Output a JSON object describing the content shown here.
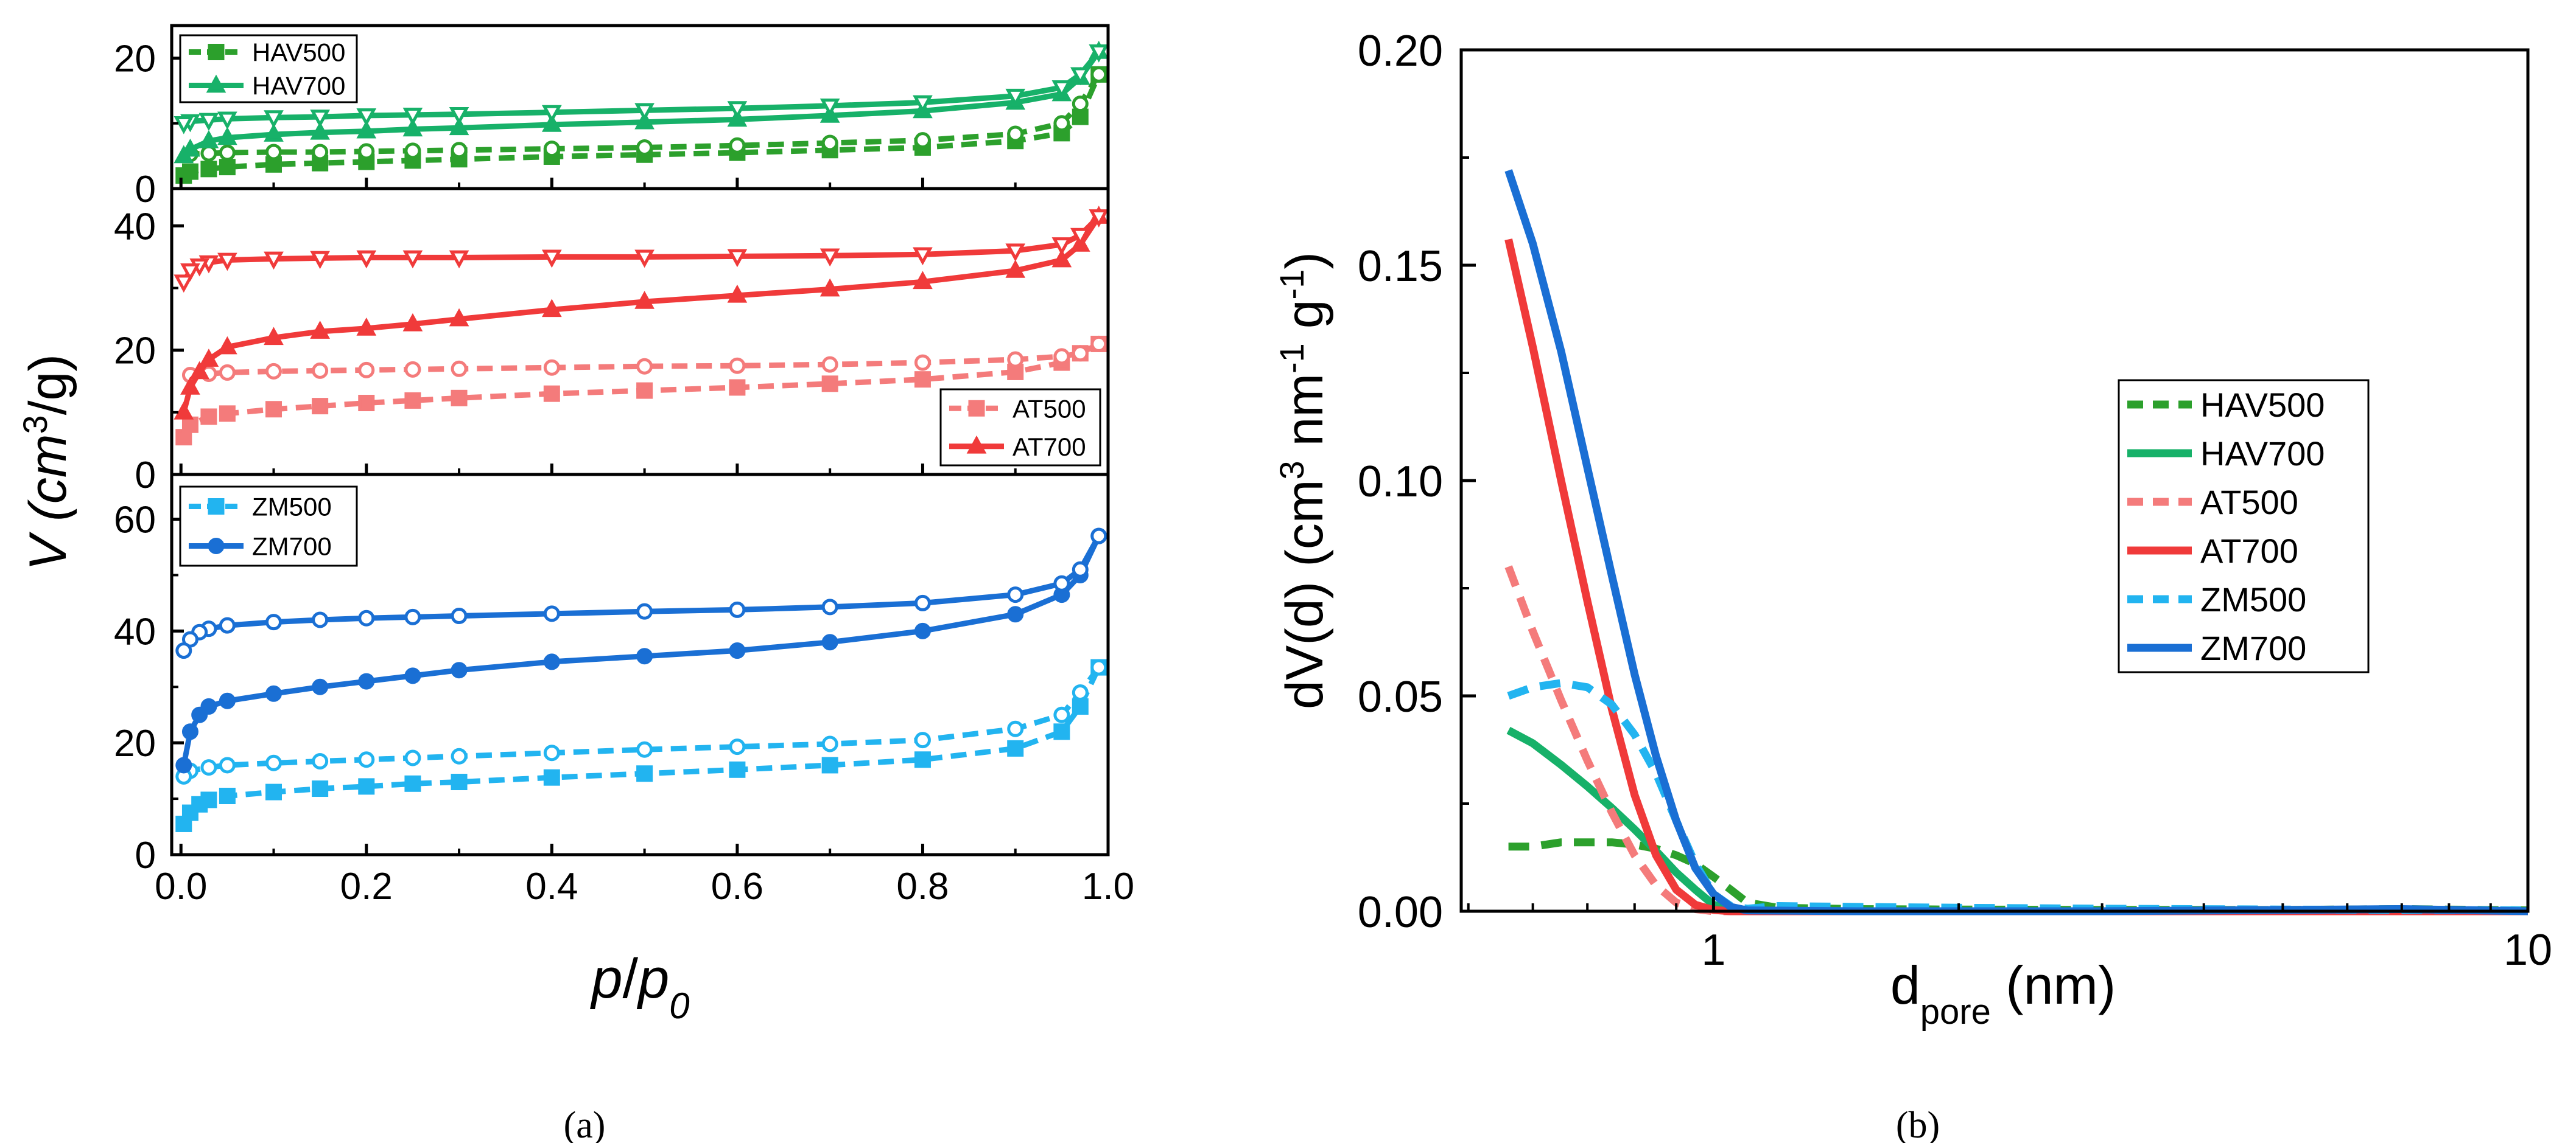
{
  "colors": {
    "HAV500": "#2ca02c",
    "HAV700": "#17b169",
    "AT500": "#f47b7b",
    "AT700": "#f03a3a",
    "ZM500": "#22b4f0",
    "ZM700": "#1a6fd4"
  },
  "panel_a": {
    "caption": "(a)",
    "xlabel_p": "p",
    "xlabel_slash": "/",
    "xlabel_p0": "p",
    "xlabel_sub": "0",
    "ylabel_pre": "V (cm",
    "ylabel_sup": "3",
    "ylabel_post": "/g)",
    "x_ticks": [
      "0.0",
      "0.2",
      "0.4",
      "0.6",
      "0.8",
      "1.0"
    ],
    "sub_ticks": [
      [
        "0",
        "20"
      ],
      [
        "0",
        "20",
        "40"
      ],
      [
        "0",
        "20",
        "40",
        "60"
      ]
    ],
    "legend_entries": [
      [
        "HAV500",
        "HAV700"
      ],
      [
        "AT500",
        "AT700"
      ],
      [
        "ZM500",
        "ZM700"
      ]
    ]
  },
  "panel_b": {
    "caption": "(b)",
    "ylabel_pre": "dV(d) (cm",
    "ylabel_sup1": "3",
    "ylabel_mid": " nm",
    "ylabel_sup2": "-1",
    "ylabel_mid2": " g",
    "ylabel_sup3": "-1",
    "ylabel_post": ")",
    "xlabel_main": "d",
    "xlabel_sub": "pore",
    "xlabel_post": " (nm)",
    "y_ticks": [
      "0.00",
      "0.05",
      "0.10",
      "0.15",
      "0.20"
    ],
    "x_ticks": [
      "1",
      "10"
    ],
    "legend": [
      "HAV500",
      "HAV700",
      "AT500",
      "AT700",
      "ZM500",
      "ZM700"
    ]
  },
  "chart_data": [
    {
      "type": "line",
      "title": "",
      "xlabel": "p/p0",
      "ylabel": "V (cm3/g)",
      "xlim": [
        -0.01,
        1.0
      ],
      "subplots": [
        {
          "ylim": [
            0,
            25
          ],
          "y_ticks": [
            0,
            20
          ],
          "series": [
            {
              "name": "HAV500",
              "branch": "adsorption",
              "style": "dashed",
              "marker": "square",
              "filled": true,
              "x": [
                0.003,
                0.01,
                0.03,
                0.05,
                0.1,
                0.15,
                0.2,
                0.25,
                0.3,
                0.4,
                0.5,
                0.6,
                0.7,
                0.8,
                0.9,
                0.95,
                0.97,
                0.99
              ],
              "y": [
                2.0,
                2.6,
                3.0,
                3.3,
                3.7,
                3.9,
                4.1,
                4.3,
                4.5,
                4.9,
                5.2,
                5.5,
                5.9,
                6.3,
                7.3,
                8.5,
                11.0,
                17.5
              ]
            },
            {
              "name": "HAV500",
              "branch": "desorption",
              "style": "dashed",
              "marker": "circle",
              "filled": false,
              "x": [
                0.99,
                0.97,
                0.95,
                0.9,
                0.8,
                0.7,
                0.6,
                0.5,
                0.4,
                0.3,
                0.25,
                0.2,
                0.15,
                0.1,
                0.05,
                0.03,
                0.01
              ],
              "y": [
                17.5,
                13.0,
                10.0,
                8.4,
                7.4,
                7.0,
                6.6,
                6.3,
                6.1,
                5.9,
                5.8,
                5.7,
                5.6,
                5.6,
                5.5,
                5.4,
                5.3
              ]
            },
            {
              "name": "HAV700",
              "branch": "adsorption",
              "style": "solid",
              "marker": "triangle",
              "filled": true,
              "x": [
                0.003,
                0.01,
                0.03,
                0.05,
                0.1,
                0.15,
                0.2,
                0.25,
                0.3,
                0.4,
                0.5,
                0.6,
                0.7,
                0.8,
                0.9,
                0.95,
                0.97,
                0.99
              ],
              "y": [
                5.0,
                6.0,
                7.3,
                7.8,
                8.3,
                8.6,
                8.8,
                9.1,
                9.3,
                9.8,
                10.2,
                10.6,
                11.2,
                11.9,
                13.2,
                14.5,
                17.0,
                21.0
              ]
            },
            {
              "name": "HAV700",
              "branch": "desorption",
              "style": "solid",
              "marker": "triangle-down",
              "filled": false,
              "x": [
                0.99,
                0.97,
                0.95,
                0.9,
                0.8,
                0.7,
                0.6,
                0.5,
                0.4,
                0.3,
                0.25,
                0.2,
                0.15,
                0.1,
                0.05,
                0.03,
                0.01,
                0.003
              ],
              "y": [
                21.0,
                17.5,
                15.5,
                14.2,
                13.2,
                12.7,
                12.3,
                12.0,
                11.7,
                11.4,
                11.3,
                11.2,
                11.0,
                10.9,
                10.7,
                10.5,
                10.3,
                10.0
              ]
            }
          ]
        },
        {
          "ylim": [
            0,
            46
          ],
          "y_ticks": [
            0,
            20,
            40
          ],
          "series": [
            {
              "name": "AT500",
              "branch": "adsorption",
              "style": "dashed",
              "marker": "square",
              "filled": true,
              "x": [
                0.003,
                0.01,
                0.03,
                0.05,
                0.1,
                0.15,
                0.2,
                0.25,
                0.3,
                0.4,
                0.5,
                0.6,
                0.7,
                0.8,
                0.9,
                0.95,
                0.97,
                0.99
              ],
              "y": [
                6.0,
                8.0,
                9.3,
                9.8,
                10.5,
                11.0,
                11.5,
                11.9,
                12.3,
                13.0,
                13.5,
                14.0,
                14.6,
                15.3,
                16.5,
                18.0,
                19.5,
                21.0
              ]
            },
            {
              "name": "AT500",
              "branch": "desorption",
              "style": "dashed",
              "marker": "circle",
              "filled": false,
              "x": [
                0.99,
                0.97,
                0.95,
                0.9,
                0.8,
                0.7,
                0.6,
                0.5,
                0.4,
                0.3,
                0.25,
                0.2,
                0.15,
                0.1,
                0.05,
                0.03,
                0.01
              ],
              "y": [
                21.0,
                19.5,
                19.0,
                18.5,
                18.0,
                17.7,
                17.5,
                17.4,
                17.2,
                17.0,
                16.9,
                16.8,
                16.7,
                16.6,
                16.4,
                16.2,
                16.0
              ]
            },
            {
              "name": "AT700",
              "branch": "adsorption",
              "style": "solid",
              "marker": "triangle",
              "filled": true,
              "x": [
                0.003,
                0.01,
                0.02,
                0.03,
                0.05,
                0.1,
                0.15,
                0.2,
                0.25,
                0.3,
                0.4,
                0.5,
                0.6,
                0.7,
                0.8,
                0.9,
                0.95,
                0.97,
                0.99
              ],
              "y": [
                10.0,
                14.0,
                16.5,
                18.5,
                20.5,
                22.0,
                23.0,
                23.5,
                24.2,
                25.0,
                26.5,
                27.8,
                28.8,
                29.8,
                31.0,
                32.8,
                34.5,
                37.0,
                41.5
              ]
            },
            {
              "name": "AT700",
              "branch": "desorption",
              "style": "solid",
              "marker": "triangle-down",
              "filled": false,
              "x": [
                0.99,
                0.97,
                0.95,
                0.9,
                0.8,
                0.7,
                0.6,
                0.5,
                0.4,
                0.3,
                0.25,
                0.2,
                0.15,
                0.1,
                0.05,
                0.03,
                0.02,
                0.01,
                0.003
              ],
              "y": [
                41.5,
                38.5,
                37.0,
                36.0,
                35.4,
                35.2,
                35.1,
                35.0,
                35.0,
                34.9,
                34.9,
                34.9,
                34.8,
                34.7,
                34.5,
                34.1,
                33.6,
                32.8,
                31.0
              ]
            }
          ]
        },
        {
          "ylim": [
            0,
            68
          ],
          "y_ticks": [
            0,
            20,
            40,
            60
          ],
          "series": [
            {
              "name": "ZM500",
              "branch": "adsorption",
              "style": "dashed",
              "marker": "square",
              "filled": true,
              "x": [
                0.003,
                0.01,
                0.02,
                0.03,
                0.05,
                0.1,
                0.15,
                0.2,
                0.25,
                0.3,
                0.4,
                0.5,
                0.6,
                0.7,
                0.8,
                0.9,
                0.95,
                0.97,
                0.99
              ],
              "y": [
                5.5,
                7.5,
                9.0,
                9.8,
                10.5,
                11.2,
                11.8,
                12.2,
                12.7,
                13.0,
                13.8,
                14.5,
                15.2,
                16.0,
                17.0,
                19.0,
                22.0,
                26.5,
                33.5
              ]
            },
            {
              "name": "ZM500",
              "branch": "desorption",
              "style": "dashed",
              "marker": "circle",
              "filled": false,
              "x": [
                0.99,
                0.97,
                0.95,
                0.9,
                0.8,
                0.7,
                0.6,
                0.5,
                0.4,
                0.3,
                0.25,
                0.2,
                0.15,
                0.1,
                0.05,
                0.03,
                0.01,
                0.003
              ],
              "y": [
                33.5,
                29.0,
                25.0,
                22.5,
                20.5,
                19.8,
                19.3,
                18.8,
                18.2,
                17.6,
                17.3,
                17.0,
                16.7,
                16.4,
                16.0,
                15.6,
                15.0,
                14.0
              ]
            },
            {
              "name": "ZM700",
              "branch": "adsorption",
              "style": "solid",
              "marker": "circle",
              "filled": true,
              "x": [
                0.003,
                0.01,
                0.02,
                0.03,
                0.05,
                0.1,
                0.15,
                0.2,
                0.25,
                0.3,
                0.4,
                0.5,
                0.6,
                0.7,
                0.8,
                0.9,
                0.95,
                0.97,
                0.99
              ],
              "y": [
                16.0,
                22.0,
                25.0,
                26.5,
                27.5,
                28.8,
                30.0,
                31.0,
                32.0,
                33.0,
                34.5,
                35.5,
                36.5,
                38.0,
                40.0,
                43.0,
                46.5,
                50.0,
                57.0
              ]
            },
            {
              "name": "ZM700",
              "branch": "desorption",
              "style": "solid",
              "marker": "circle",
              "filled": false,
              "x": [
                0.99,
                0.97,
                0.95,
                0.9,
                0.8,
                0.7,
                0.6,
                0.5,
                0.4,
                0.3,
                0.25,
                0.2,
                0.15,
                0.1,
                0.05,
                0.03,
                0.02,
                0.01,
                0.003
              ],
              "y": [
                57.0,
                51.0,
                48.5,
                46.5,
                45.0,
                44.3,
                43.8,
                43.5,
                43.1,
                42.7,
                42.5,
                42.3,
                42.0,
                41.6,
                41.0,
                40.4,
                39.8,
                38.5,
                36.5
              ]
            }
          ]
        }
      ]
    },
    {
      "type": "line",
      "title": "",
      "xlabel": "dpore (nm)",
      "ylabel": "dV(d) (cm3 nm-1 g-1)",
      "xscale": "log",
      "xlim": [
        0.49,
        10
      ],
      "ylim": [
        0,
        0.2
      ],
      "legend_position": "center-right",
      "series": [
        {
          "name": "HAV500",
          "style": "dashed",
          "x": [
            0.56,
            0.6,
            0.65,
            0.7,
            0.75,
            0.8,
            0.85,
            0.9,
            0.95,
            1.0,
            1.05,
            1.1,
            1.2,
            1.5,
            2,
            3,
            5,
            7,
            10
          ],
          "y": [
            0.015,
            0.015,
            0.016,
            0.016,
            0.016,
            0.0155,
            0.0145,
            0.013,
            0.011,
            0.008,
            0.005,
            0.002,
            0.0008,
            0.0005,
            0.0004,
            0.0003,
            0.0003,
            0.0005,
            0.0002
          ]
        },
        {
          "name": "HAV700",
          "style": "solid",
          "x": [
            0.56,
            0.6,
            0.65,
            0.7,
            0.75,
            0.8,
            0.85,
            0.9,
            0.95,
            1.0,
            1.05,
            1.1,
            1.2,
            1.5,
            3,
            10
          ],
          "y": [
            0.042,
            0.039,
            0.034,
            0.029,
            0.024,
            0.019,
            0.014,
            0.009,
            0.005,
            0.0015,
            0.0003,
            0.0001,
            0,
            0,
            0,
            0
          ]
        },
        {
          "name": "AT500",
          "style": "dashed",
          "x": [
            0.56,
            0.6,
            0.65,
            0.7,
            0.75,
            0.8,
            0.85,
            0.9,
            0.95,
            1.0,
            1.5,
            3,
            10
          ],
          "y": [
            0.08,
            0.065,
            0.049,
            0.035,
            0.023,
            0.013,
            0.006,
            0.002,
            0.0005,
            0,
            0,
            0,
            0
          ]
        },
        {
          "name": "AT700",
          "style": "solid",
          "x": [
            0.56,
            0.6,
            0.65,
            0.7,
            0.75,
            0.8,
            0.85,
            0.9,
            0.95,
            1.0,
            1.05,
            1.5,
            3,
            10
          ],
          "y": [
            0.156,
            0.131,
            0.1,
            0.072,
            0.047,
            0.027,
            0.013,
            0.005,
            0.0015,
            0.0003,
            0,
            0,
            0,
            0
          ]
        },
        {
          "name": "ZM500",
          "style": "dashed",
          "x": [
            0.56,
            0.6,
            0.65,
            0.7,
            0.75,
            0.8,
            0.85,
            0.9,
            0.95,
            1.0,
            1.05,
            1.1,
            1.2,
            1.5,
            2,
            3,
            5,
            7,
            10
          ],
          "y": [
            0.05,
            0.052,
            0.053,
            0.052,
            0.048,
            0.041,
            0.032,
            0.021,
            0.011,
            0.004,
            0.0012,
            0.0006,
            0.0012,
            0.001,
            0.0008,
            0.0006,
            0.0004,
            0.0003,
            0.0002
          ]
        },
        {
          "name": "ZM700",
          "style": "solid",
          "x": [
            0.56,
            0.6,
            0.65,
            0.7,
            0.75,
            0.8,
            0.85,
            0.9,
            0.95,
            1.0,
            1.05,
            1.1,
            1.5,
            3,
            7,
            10
          ],
          "y": [
            0.172,
            0.155,
            0.13,
            0.103,
            0.078,
            0.055,
            0.036,
            0.021,
            0.01,
            0.004,
            0.001,
            0.0002,
            0,
            0,
            0.0005,
            0
          ]
        }
      ]
    }
  ]
}
